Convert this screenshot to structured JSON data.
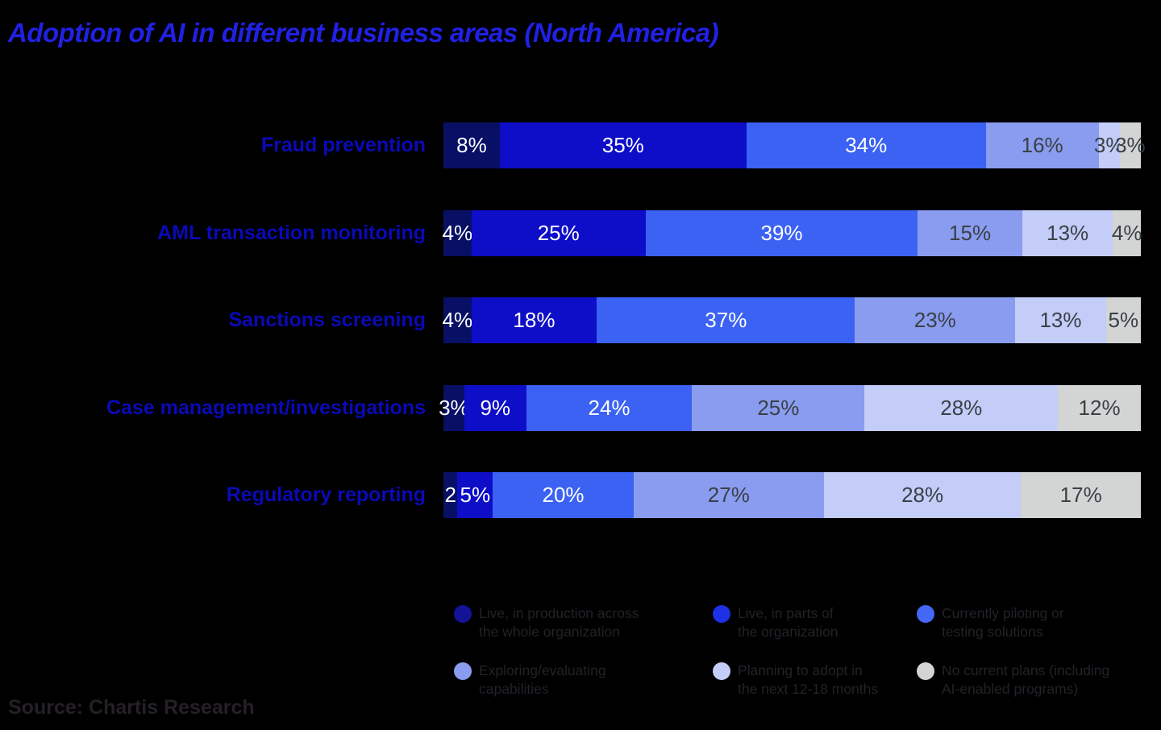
{
  "title": "Adoption of AI in different business areas (North America)",
  "source": "Source: Chartis Research",
  "colors": {
    "background": "#000000",
    "title_text": "#2021E4",
    "category_label_text": "#0A0AB6",
    "legend_text": "#222228",
    "source_text": "#242026",
    "white_value_label": "#FFFFFF",
    "dark_value_label": "#3A4046"
  },
  "chart_data": {
    "type": "bar",
    "orientation": "horizontal",
    "stacked": true,
    "unit": "%",
    "xlim": [
      0,
      100
    ],
    "title": "Adoption of AI in different business areas (North America)",
    "categories": [
      "Fraud prevention",
      "AML transaction monitoring",
      "Sanctions screening",
      "Case management/investigations",
      "Regulatory reporting"
    ],
    "series": [
      {
        "name": "Live, in production across the whole organization",
        "color": "#081065",
        "label_color": "#FFFFFF",
        "values": [
          8,
          4,
          4,
          3,
          2
        ]
      },
      {
        "name": "Live, in parts of the organization",
        "color": "#0E0EC8",
        "label_color": "#FFFFFF",
        "values": [
          35,
          25,
          18,
          9,
          5
        ]
      },
      {
        "name": "Currently piloting or testing solutions",
        "color": "#3B62F2",
        "label_color": "#FFFFFF",
        "values": [
          34,
          39,
          37,
          24,
          20
        ]
      },
      {
        "name": "Exploring/evaluating capabilities",
        "color": "#8A9CEF",
        "label_color": "#3A4046",
        "values": [
          16,
          15,
          23,
          25,
          27
        ]
      },
      {
        "name": "Planning to adopt in the next 12-18 months",
        "color": "#C3CDF8",
        "label_color": "#3A4046",
        "values": [
          3,
          13,
          13,
          28,
          28
        ]
      },
      {
        "name": "No current plans (including AI-enabled programs)",
        "color": "#D2D5D3",
        "label_color": "#3A4046",
        "values": [
          3,
          4,
          5,
          12,
          17
        ]
      }
    ],
    "cell_labels": [
      [
        "8%",
        "35%",
        "34%",
        "16%",
        "3%",
        "3%"
      ],
      [
        "4%",
        "25%",
        "39%",
        "15%",
        "13%",
        "4%"
      ],
      [
        "4%",
        "18%",
        "37%",
        "23%",
        "13%",
        "5%"
      ],
      [
        "3%",
        "9%",
        "24%",
        "25%",
        "28%",
        "12%"
      ],
      [
        "2",
        "5%",
        "20%",
        "27%",
        "28%",
        "17%"
      ]
    ],
    "legend_position": "bottom"
  },
  "legend": {
    "items": [
      {
        "line1": "Live, in production across",
        "line2": "the whole organization",
        "dot_color": "#121397"
      },
      {
        "line1": "Live, in parts of",
        "line2": "the organization",
        "dot_color": "#1C30E4"
      },
      {
        "line1": "Currently piloting or",
        "line2": "testing solutions",
        "dot_color": "#4368F6"
      },
      {
        "line1": "Exploring/evaluating",
        "line2": "capabilities",
        "dot_color": "#8A9CEF"
      },
      {
        "line1": "Planning to adopt in",
        "line2": "the next 12-18 months",
        "dot_color": "#C3CDF8"
      },
      {
        "line1": "No current plans (including",
        "line2": "AI-enabled programs)",
        "dot_color": "#D4D4D4"
      }
    ]
  }
}
